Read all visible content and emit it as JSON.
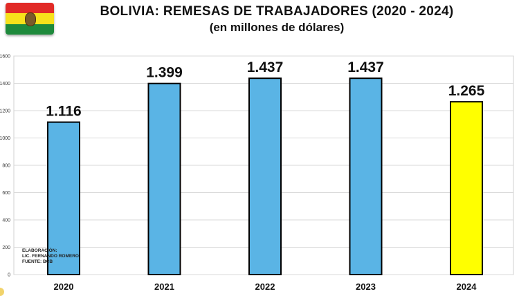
{
  "title": "BOLIVIA: REMESAS DE TRABAJADORES (2020 - 2024)",
  "subtitle": "(en millones de dólares)",
  "flag_colors": {
    "top": "#e12a26",
    "middle": "#f7e11b",
    "bottom": "#1e8a3c"
  },
  "credits": {
    "line1": "ELABORACIÓN:",
    "line2": "LIC. FERNANDO ROMERO",
    "line3": "FUENTE: BCB"
  },
  "chart_data": {
    "type": "bar",
    "title": "BOLIVIA: REMESAS DE TRABAJADORES (2020 - 2024)",
    "subtitle": "(en millones de dólares)",
    "categories": [
      "2020",
      "2021",
      "2022",
      "2023",
      "2024"
    ],
    "values": [
      1116,
      1399,
      1437,
      1437,
      1265
    ],
    "data_labels": [
      "1.116",
      "1.399",
      "1.437",
      "1.437",
      "1.265"
    ],
    "ylim": [
      0,
      1600
    ],
    "yticks": [
      0,
      200,
      400,
      600,
      800,
      1000,
      1200,
      1400,
      1600
    ],
    "ytick_labels": [
      "0",
      "200",
      "400",
      "600",
      "800",
      "1000",
      "1200",
      "1400",
      "1600"
    ],
    "bar_colors": [
      "#5ab4e5",
      "#5ab4e5",
      "#5ab4e5",
      "#5ab4e5",
      "#ffff00"
    ],
    "grid": true,
    "legend": "none"
  }
}
